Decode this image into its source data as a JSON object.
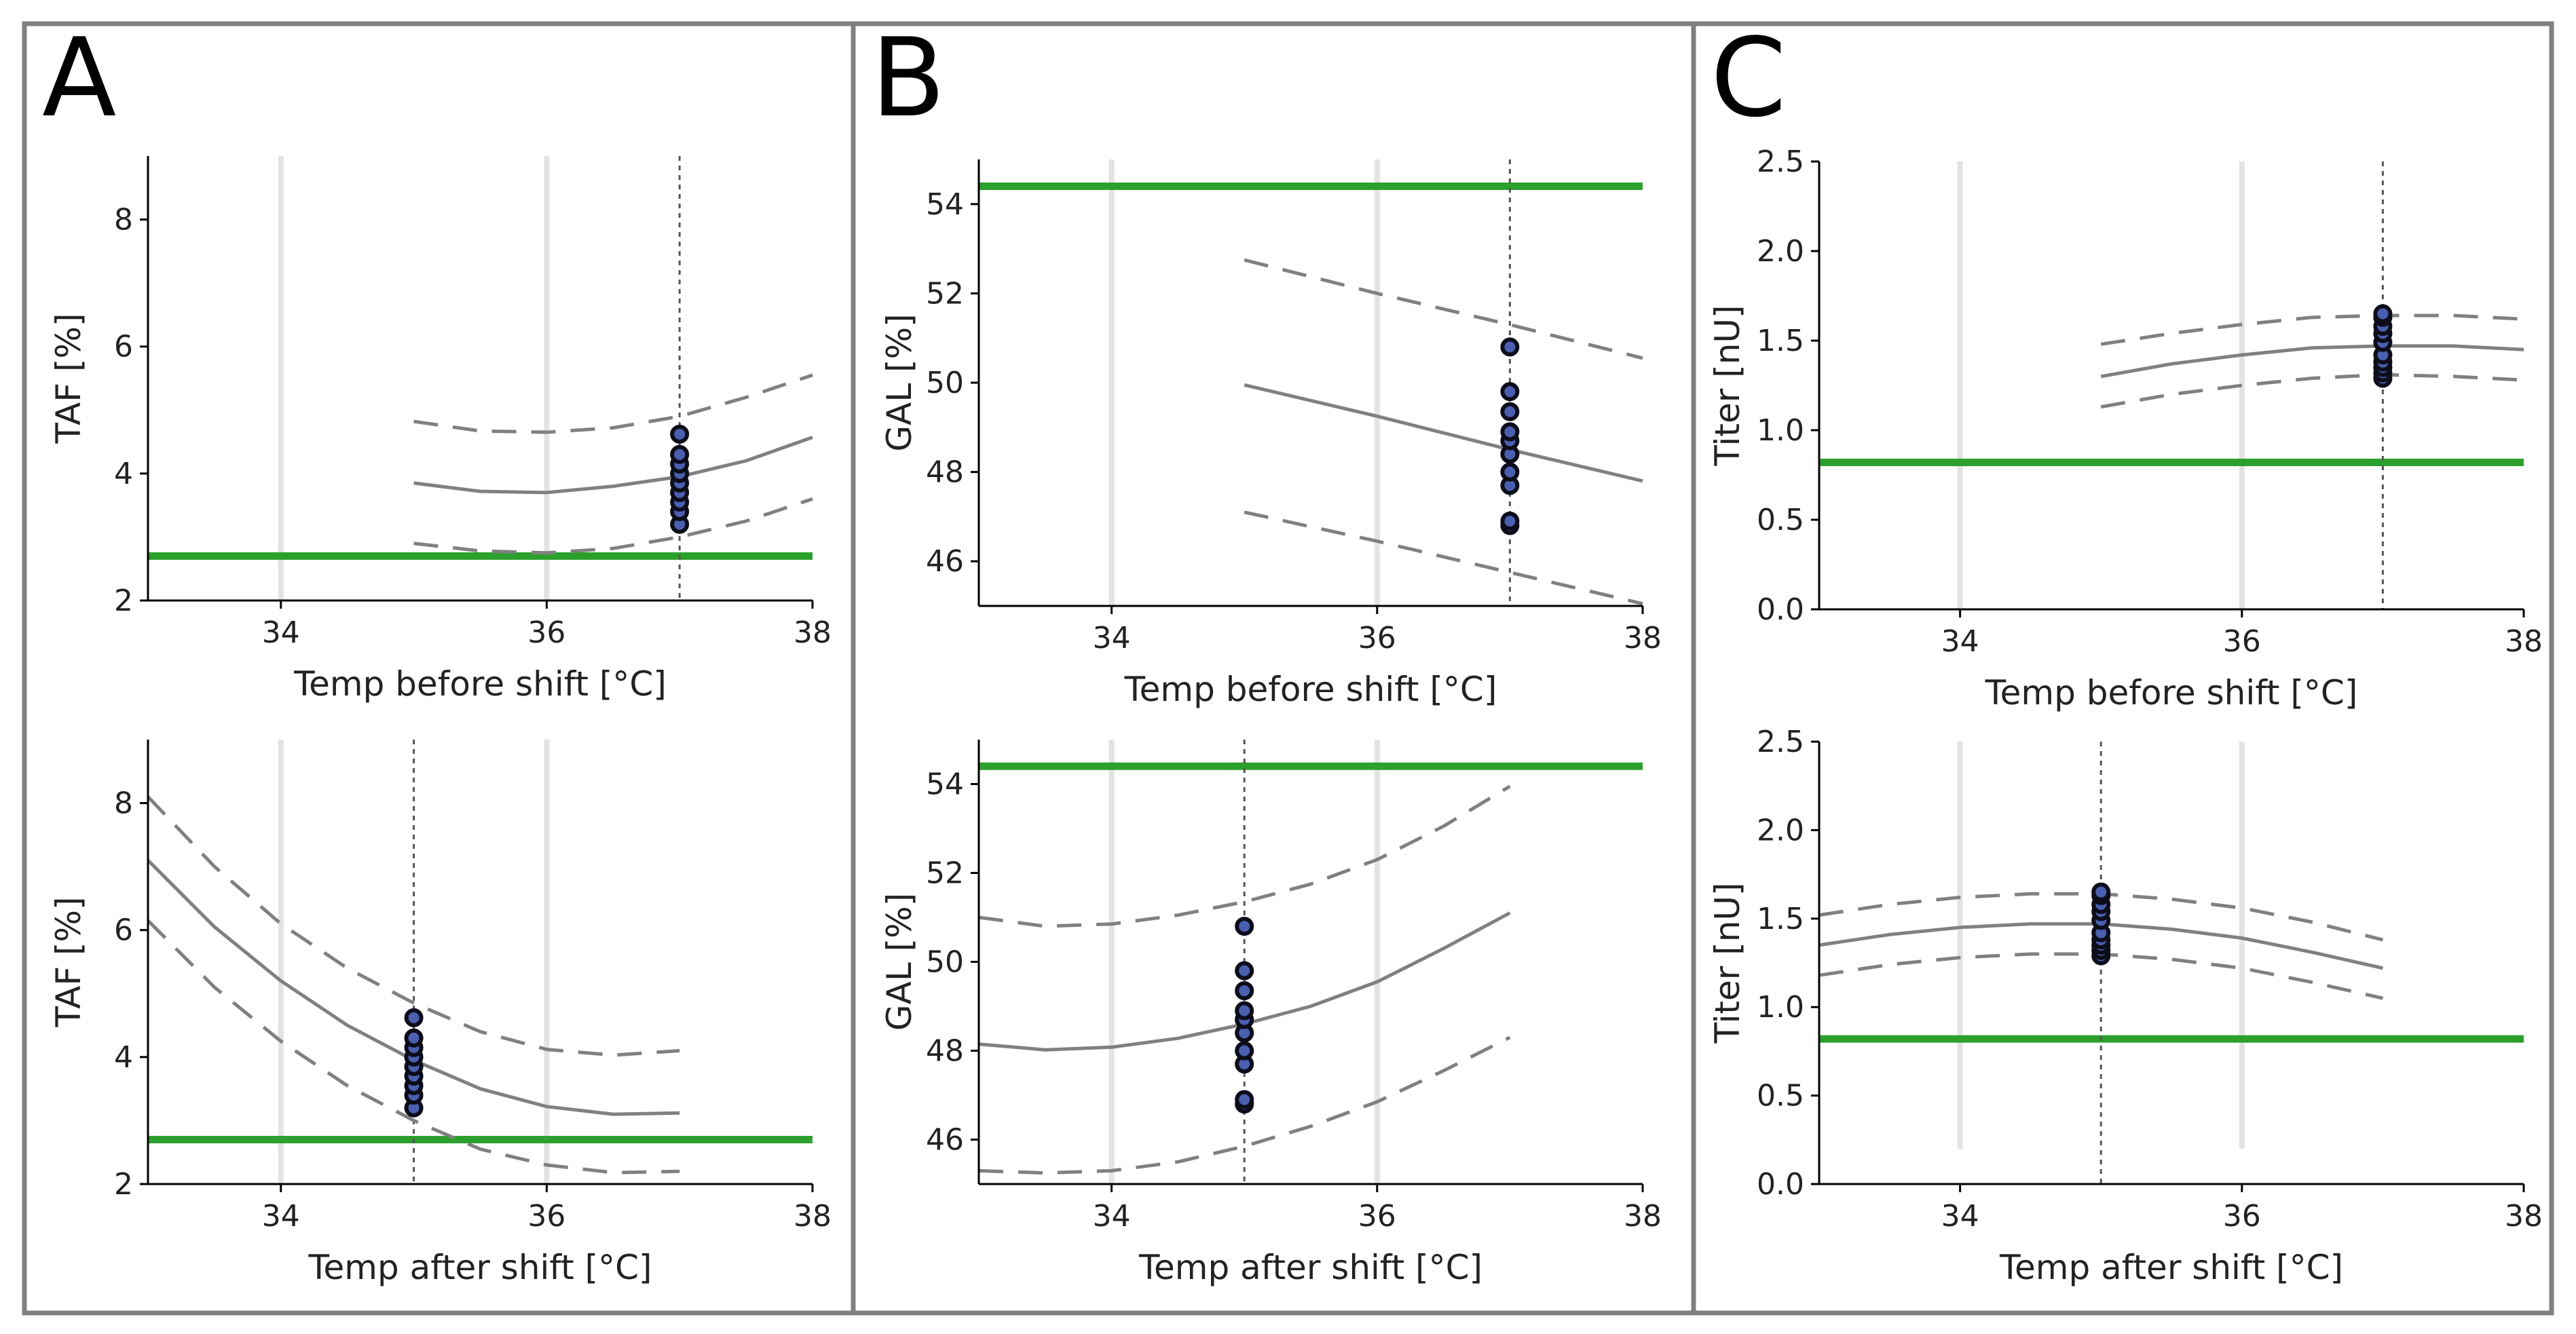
{
  "figure": {
    "colors": {
      "fit_line": "#808080",
      "ci_line": "#808080",
      "spec_limit": "#2ca02c",
      "grid": "#e3e3e3",
      "current_setpoint": "#555555",
      "marker_fill": "#4a5fb0",
      "marker_edge": "#0d0d1a",
      "panel_border": "#808080"
    }
  },
  "panels": [
    {
      "letter": "A"
    },
    {
      "letter": "B"
    },
    {
      "letter": "C"
    }
  ],
  "chart_data": [
    {
      "panel": "A",
      "type": "line",
      "xlabel": "Temp before shift [°C]",
      "ylabel": "TAF [%]",
      "xlim": [
        33,
        38
      ],
      "ylim": [
        2,
        9
      ],
      "xticks": [
        34,
        36,
        38
      ],
      "yticks": [
        2,
        4,
        6,
        8
      ],
      "grid_x": [
        34,
        36
      ],
      "grid_y_range": [
        2,
        9
      ],
      "setpoint_x": 37,
      "spec_limit": 2.7,
      "fit": {
        "x": [
          35,
          35.5,
          36,
          36.5,
          37,
          37.5,
          38
        ],
        "y": [
          3.85,
          3.72,
          3.7,
          3.8,
          3.95,
          4.2,
          4.57
        ]
      },
      "ci_upper": {
        "x": [
          35,
          35.5,
          36,
          36.5,
          37,
          37.5,
          38
        ],
        "y": [
          4.82,
          4.67,
          4.65,
          4.72,
          4.9,
          5.2,
          5.55
        ]
      },
      "ci_lower": {
        "x": [
          35,
          35.5,
          36,
          36.5,
          37,
          37.5,
          38
        ],
        "y": [
          2.9,
          2.78,
          2.75,
          2.82,
          3.0,
          3.25,
          3.6
        ]
      },
      "observations": {
        "x": 37,
        "y": [
          3.2,
          3.4,
          3.55,
          3.7,
          3.85,
          4.0,
          4.15,
          4.3,
          4.62
        ]
      }
    },
    {
      "panel": "A",
      "type": "line",
      "xlabel": "Temp after shift [°C]",
      "ylabel": "TAF [%]",
      "xlim": [
        33,
        38
      ],
      "ylim": [
        2,
        9
      ],
      "xticks": [
        34,
        36,
        38
      ],
      "yticks": [
        2,
        4,
        6,
        8
      ],
      "grid_x": [
        34,
        36
      ],
      "grid_y_range": [
        2,
        9
      ],
      "setpoint_x": 35,
      "spec_limit": 2.7,
      "fit": {
        "x": [
          33,
          33.5,
          34,
          34.5,
          35,
          35.5,
          36,
          36.5,
          37
        ],
        "y": [
          7.1,
          6.05,
          5.2,
          4.5,
          3.95,
          3.5,
          3.22,
          3.1,
          3.12
        ]
      },
      "ci_upper": {
        "x": [
          33,
          33.5,
          34,
          34.5,
          35,
          35.5,
          36,
          36.5,
          37
        ],
        "y": [
          8.1,
          7.0,
          6.1,
          5.4,
          4.85,
          4.4,
          4.12,
          4.03,
          4.1
        ]
      },
      "ci_lower": {
        "x": [
          33,
          33.5,
          34,
          34.5,
          35,
          35.5,
          36,
          36.5,
          37
        ],
        "y": [
          6.15,
          5.1,
          4.25,
          3.55,
          3.0,
          2.55,
          2.3,
          2.18,
          2.2
        ]
      },
      "observations": {
        "x": 35,
        "y": [
          3.2,
          3.4,
          3.55,
          3.7,
          3.85,
          4.0,
          4.15,
          4.3,
          4.62
        ]
      }
    },
    {
      "panel": "B",
      "type": "line",
      "xlabel": "Temp before shift [°C]",
      "ylabel": "GAL [%]",
      "xlim": [
        33,
        38
      ],
      "ylim": [
        45,
        55
      ],
      "xticks": [
        34,
        36,
        38
      ],
      "yticks": [
        46,
        48,
        50,
        52,
        54
      ],
      "grid_x": [
        34,
        36
      ],
      "grid_y_range": [
        45,
        55
      ],
      "setpoint_x": 37,
      "spec_limit": 54.4,
      "fit": {
        "x": [
          35,
          36,
          37,
          38
        ],
        "y": [
          49.95,
          49.25,
          48.5,
          47.8
        ]
      },
      "ci_upper": {
        "x": [
          35,
          36,
          37,
          38
        ],
        "y": [
          52.75,
          52.0,
          51.3,
          50.55
        ]
      },
      "ci_lower": {
        "x": [
          35,
          36,
          37,
          38
        ],
        "y": [
          47.1,
          46.45,
          45.75,
          45.05
        ]
      },
      "observations": {
        "x": 37,
        "y": [
          46.8,
          46.9,
          47.7,
          48.0,
          48.4,
          48.7,
          48.9,
          49.35,
          49.8,
          50.8
        ]
      }
    },
    {
      "panel": "B",
      "type": "line",
      "xlabel": "Temp after shift [°C]",
      "ylabel": "GAL [%]",
      "xlim": [
        33,
        38
      ],
      "ylim": [
        45,
        55
      ],
      "xticks": [
        34,
        36,
        38
      ],
      "yticks": [
        46,
        48,
        50,
        52,
        54
      ],
      "grid_x": [
        34,
        36
      ],
      "grid_y_range": [
        45,
        55
      ],
      "setpoint_x": 35,
      "spec_limit": 54.4,
      "fit": {
        "x": [
          33,
          33.5,
          34,
          34.5,
          35,
          35.5,
          36,
          36.5,
          37
        ],
        "y": [
          48.15,
          48.02,
          48.08,
          48.28,
          48.6,
          49.0,
          49.55,
          50.3,
          51.1
        ]
      },
      "ci_upper": {
        "x": [
          33,
          33.5,
          34,
          34.5,
          35,
          35.5,
          36,
          36.5,
          37
        ],
        "y": [
          51.0,
          50.8,
          50.85,
          51.05,
          51.35,
          51.75,
          52.3,
          53.05,
          53.95
        ]
      },
      "ci_lower": {
        "x": [
          33,
          33.5,
          34,
          34.5,
          35,
          35.5,
          36,
          36.5,
          37
        ],
        "y": [
          45.3,
          45.25,
          45.3,
          45.5,
          45.85,
          46.3,
          46.85,
          47.55,
          48.3
        ]
      },
      "observations": {
        "x": 35,
        "y": [
          46.8,
          46.9,
          47.7,
          48.0,
          48.4,
          48.7,
          48.9,
          49.35,
          49.8,
          50.8
        ]
      }
    },
    {
      "panel": "C",
      "type": "line",
      "xlabel": "Temp before shift [°C]",
      "ylabel": "Titer [nU]",
      "xlim": [
        33,
        38
      ],
      "ylim": [
        0.0,
        2.5
      ],
      "xticks": [
        34,
        36,
        38
      ],
      "yticks": [
        0.0,
        0.5,
        1.0,
        1.5,
        2.0,
        2.5
      ],
      "ytick_labels": [
        "0.0",
        "0.5",
        "1.0",
        "1.5",
        "2.0",
        "2.5"
      ],
      "grid_x": [
        34,
        36
      ],
      "grid_y_range": [
        0.0,
        2.5
      ],
      "setpoint_x": 37,
      "spec_limit": 0.82,
      "fit": {
        "x": [
          35,
          35.5,
          36,
          36.5,
          37,
          37.5,
          38
        ],
        "y": [
          1.3,
          1.37,
          1.42,
          1.46,
          1.47,
          1.47,
          1.45
        ]
      },
      "ci_upper": {
        "x": [
          35,
          35.5,
          36,
          36.5,
          37,
          37.5,
          38
        ],
        "y": [
          1.48,
          1.54,
          1.59,
          1.63,
          1.64,
          1.64,
          1.62
        ]
      },
      "ci_lower": {
        "x": [
          35,
          35.5,
          36,
          36.5,
          37,
          37.5,
          38
        ],
        "y": [
          1.13,
          1.2,
          1.25,
          1.29,
          1.31,
          1.3,
          1.28
        ]
      },
      "observations": {
        "x": 37,
        "y": [
          1.29,
          1.32,
          1.35,
          1.38,
          1.42,
          1.49,
          1.54,
          1.58,
          1.63,
          1.65
        ]
      }
    },
    {
      "panel": "C",
      "type": "line",
      "xlabel": "Temp after shift [°C]",
      "ylabel": "Titer [nU]",
      "xlim": [
        33,
        38
      ],
      "ylim": [
        0.0,
        2.5
      ],
      "xticks": [
        34,
        36,
        38
      ],
      "yticks": [
        0.0,
        0.5,
        1.0,
        1.5,
        2.0,
        2.5
      ],
      "ytick_labels": [
        "0.0",
        "0.5",
        "1.0",
        "1.5",
        "2.0",
        "2.5"
      ],
      "grid_x": [
        34,
        36
      ],
      "grid_y_range": [
        0.2,
        2.5
      ],
      "setpoint_x": 35,
      "spec_limit": 0.82,
      "fit": {
        "x": [
          33,
          33.5,
          34,
          34.5,
          35,
          35.5,
          36,
          36.5,
          37
        ],
        "y": [
          1.35,
          1.41,
          1.45,
          1.47,
          1.47,
          1.44,
          1.39,
          1.31,
          1.22
        ]
      },
      "ci_upper": {
        "x": [
          33,
          33.5,
          34,
          34.5,
          35,
          35.5,
          36,
          36.5,
          37
        ],
        "y": [
          1.52,
          1.58,
          1.62,
          1.64,
          1.64,
          1.61,
          1.56,
          1.48,
          1.38
        ]
      },
      "ci_lower": {
        "x": [
          33,
          33.5,
          34,
          34.5,
          35,
          35.5,
          36,
          36.5,
          37
        ],
        "y": [
          1.18,
          1.24,
          1.28,
          1.3,
          1.3,
          1.27,
          1.22,
          1.14,
          1.05
        ]
      },
      "observations": {
        "x": 35,
        "y": [
          1.29,
          1.32,
          1.35,
          1.38,
          1.42,
          1.49,
          1.54,
          1.58,
          1.63,
          1.65
        ]
      }
    }
  ]
}
